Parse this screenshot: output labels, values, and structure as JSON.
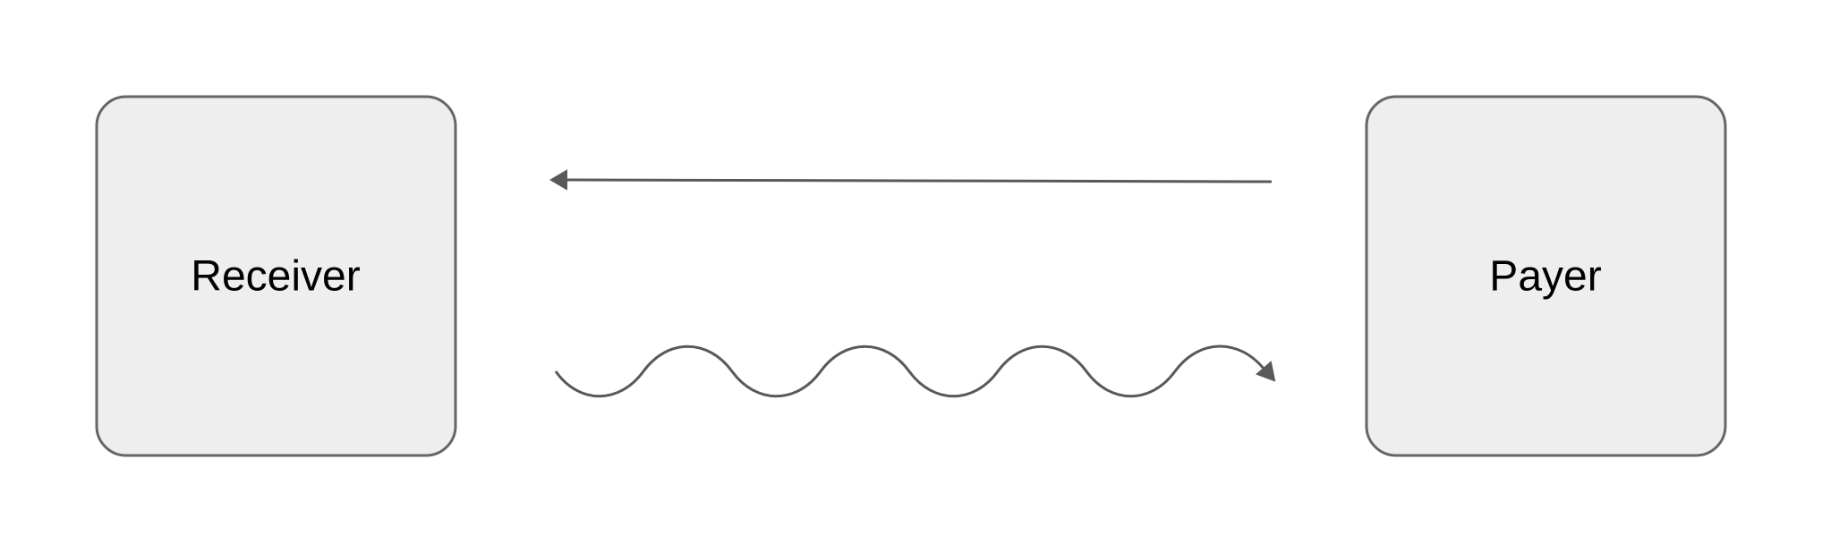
{
  "nodes": {
    "receiver": {
      "label": "Receiver"
    },
    "payer": {
      "label": "Payer"
    }
  },
  "edges": [
    {
      "from": "payer",
      "to": "receiver",
      "style": "straight"
    },
    {
      "from": "receiver",
      "to": "payer",
      "style": "wavy"
    }
  ],
  "colors": {
    "node_fill": "#eeeeee",
    "node_stroke": "#666666",
    "edge_stroke": "#595959",
    "text": "#000000"
  }
}
